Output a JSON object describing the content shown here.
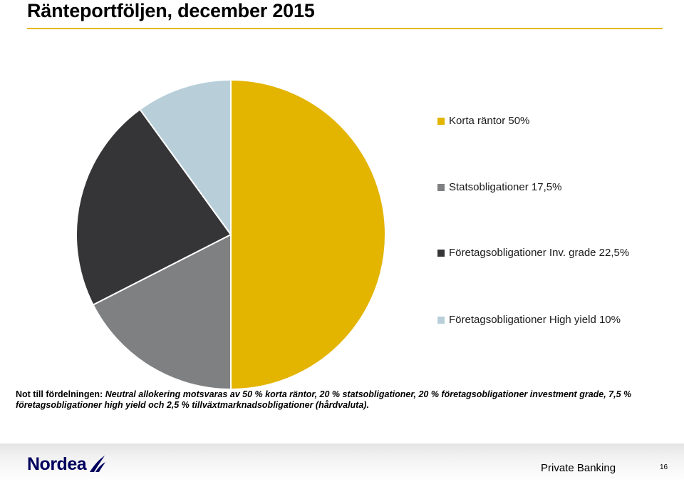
{
  "header": {
    "title": "Ränteportföljen, december 2015"
  },
  "chart_data": {
    "type": "pie",
    "title": "",
    "slices": [
      {
        "label": "Korta räntor 50%",
        "value": 50,
        "color": "#e3b400"
      },
      {
        "label": "Statsobligationer 17,5%",
        "value": 17.5,
        "color": "#7f8081"
      },
      {
        "label": "Företagsobligationer Inv. grade 22,5%",
        "value": 22.5,
        "color": "#353537"
      },
      {
        "label": "Företagsobligationer High yield 10%",
        "value": 10,
        "color": "#b8cfda"
      }
    ],
    "legend_position": "right",
    "start_angle": "12 o'clock",
    "direction": "clockwise"
  },
  "note": {
    "label": "Not till fördelningen:",
    "text": "Neutral allokering motsvaras av 50 % korta räntor, 20 % statsobligationer, 20 % företagsobligationer investment grade, 7,5 % företagsobligationer high yield och 2,5 % tillväxtmarknadsobligationer (hårdvaluta)."
  },
  "footer": {
    "brand": "Nordea",
    "division": "Private Banking",
    "page_number": "16"
  }
}
